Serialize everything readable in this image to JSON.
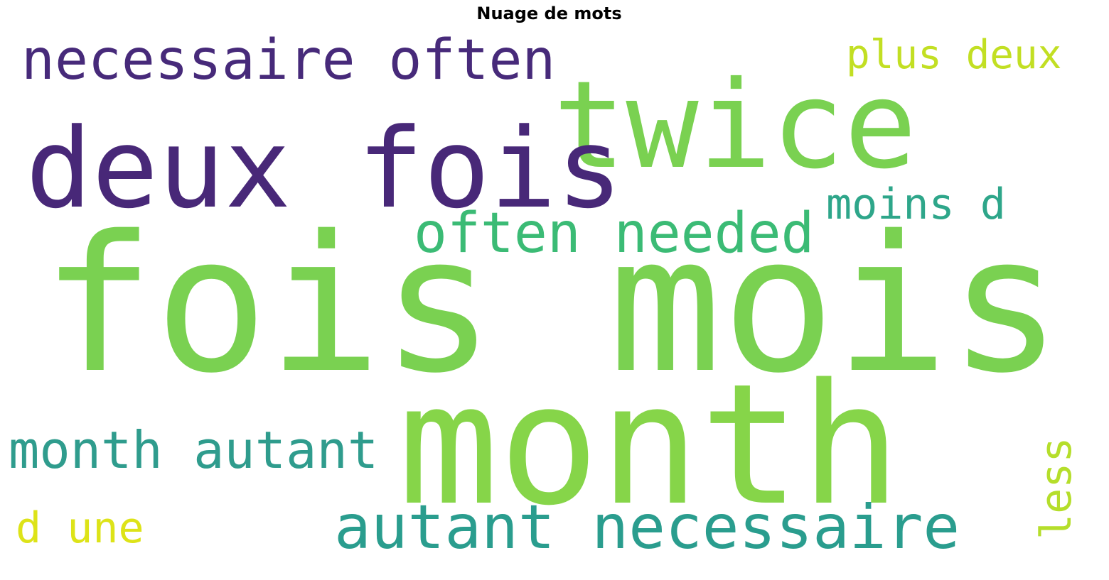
{
  "title": "Nuage de mots",
  "words": [
    {
      "text": "fois mois",
      "color": "#7ad151"
    },
    {
      "text": "month",
      "color": "#86d549"
    },
    {
      "text": "twice",
      "color": "#7ad151"
    },
    {
      "text": "deux fois",
      "color": "#482878"
    },
    {
      "text": "necessaire often",
      "color": "#472a7a"
    },
    {
      "text": "often needed",
      "color": "#3bbb75"
    },
    {
      "text": "autant necessaire",
      "color": "#2a9d8e"
    },
    {
      "text": "month autant",
      "color": "#2f9c8d"
    },
    {
      "text": "plus deux",
      "color": "#c2df23"
    },
    {
      "text": "moins d",
      "color": "#2ea68a"
    },
    {
      "text": "d une",
      "color": "#dde318"
    },
    {
      "text": "less",
      "color": "#b5de2b"
    }
  ]
}
